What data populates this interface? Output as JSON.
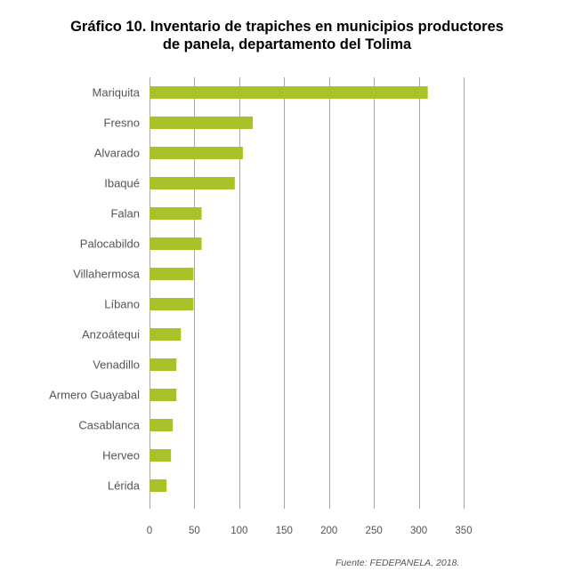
{
  "title_lines": [
    "Gráfico 10. Inventario de trapiches en municipios productores",
    "de panela, departamento del Tolima"
  ],
  "source": "Fuente: FEDEPANELA, 2018.",
  "colors": {
    "bar": "#a9c22a",
    "grid": "#a6a6a6",
    "text": "#555555"
  },
  "chart_data": {
    "type": "bar",
    "orientation": "horizontal",
    "title": "Gráfico 10. Inventario de trapiches en municipios productores de panela, departamento del Tolima",
    "categories": [
      "Mariquita",
      "Fresno",
      "Alvarado",
      "Ibaqué",
      "Falan",
      "Palocabildo",
      "Villahermosa",
      "Líbano",
      "Anzoátequi",
      "Venadillo",
      "Armero Guayabal",
      "Casablanca",
      "Herveo",
      "Lérida"
    ],
    "values": [
      310,
      115,
      104,
      95,
      58,
      58,
      49,
      49,
      35,
      30,
      30,
      26,
      24,
      19
    ],
    "xlim": [
      0,
      350
    ],
    "xticks": [
      0,
      50,
      100,
      150,
      200,
      250,
      300,
      350
    ],
    "xlabel": "",
    "ylabel": "",
    "grid": "vertical",
    "legend": "none"
  }
}
